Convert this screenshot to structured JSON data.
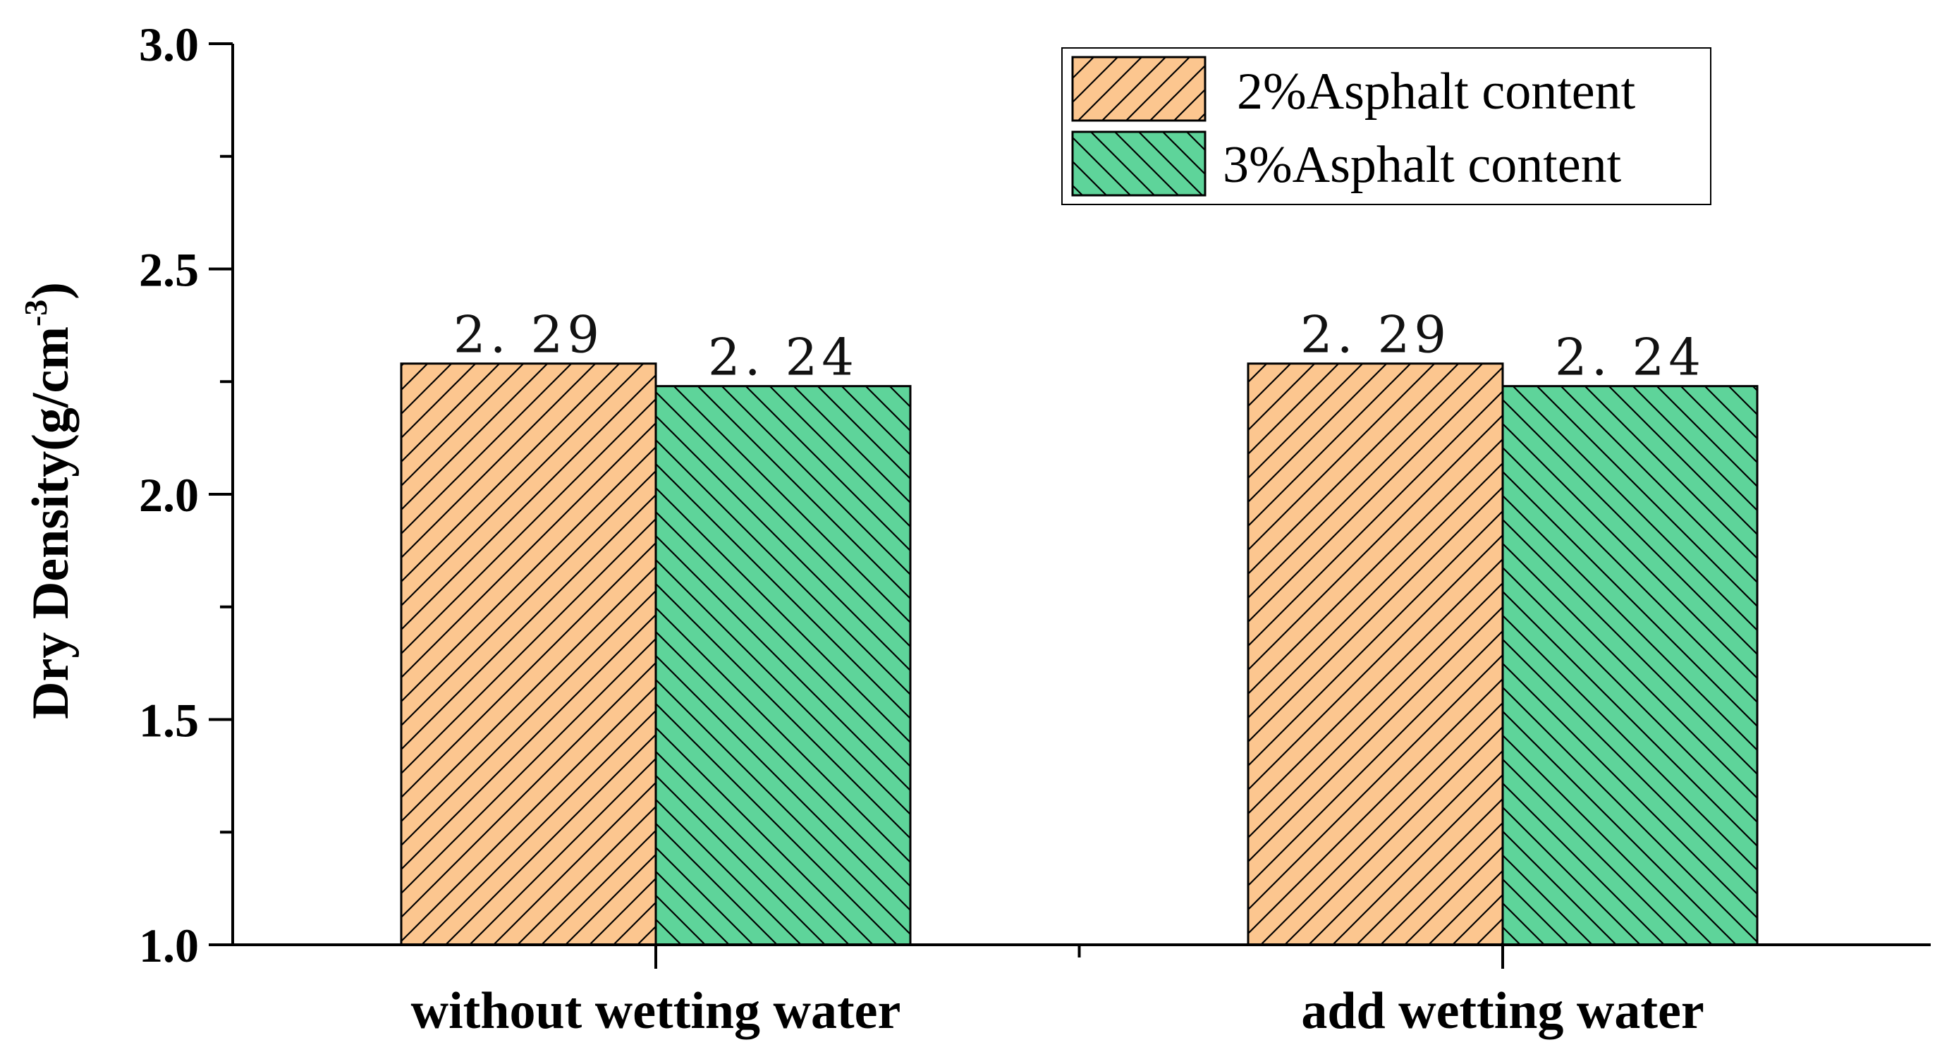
{
  "colors": {
    "series1_fill": "#FCC68F",
    "series2_fill": "#5ED49A",
    "stroke": "#000000"
  },
  "chart_data": {
    "type": "bar",
    "title": "",
    "xlabel": "",
    "ylabel": "Dry Density(g/cm",
    "ylabel_sup": "-3",
    "ylabel_close": ")",
    "ylim": [
      1.0,
      3.0
    ],
    "yticks": [
      "1.0",
      "1.5",
      "2.0",
      "2.5",
      "3.0"
    ],
    "grid": false,
    "legend_position": "top-right",
    "categories": [
      "without wetting water",
      "add wetting water"
    ],
    "series": [
      {
        "name": "2%Asphalt content",
        "values": [
          2.29,
          2.29
        ],
        "labels": [
          "2. 29",
          "2. 29"
        ],
        "hatch": "forward-diagonal"
      },
      {
        "name": "3%Asphalt content",
        "values": [
          2.24,
          2.24
        ],
        "labels": [
          "2. 24",
          "2. 24"
        ],
        "hatch": "back-diagonal"
      }
    ]
  }
}
